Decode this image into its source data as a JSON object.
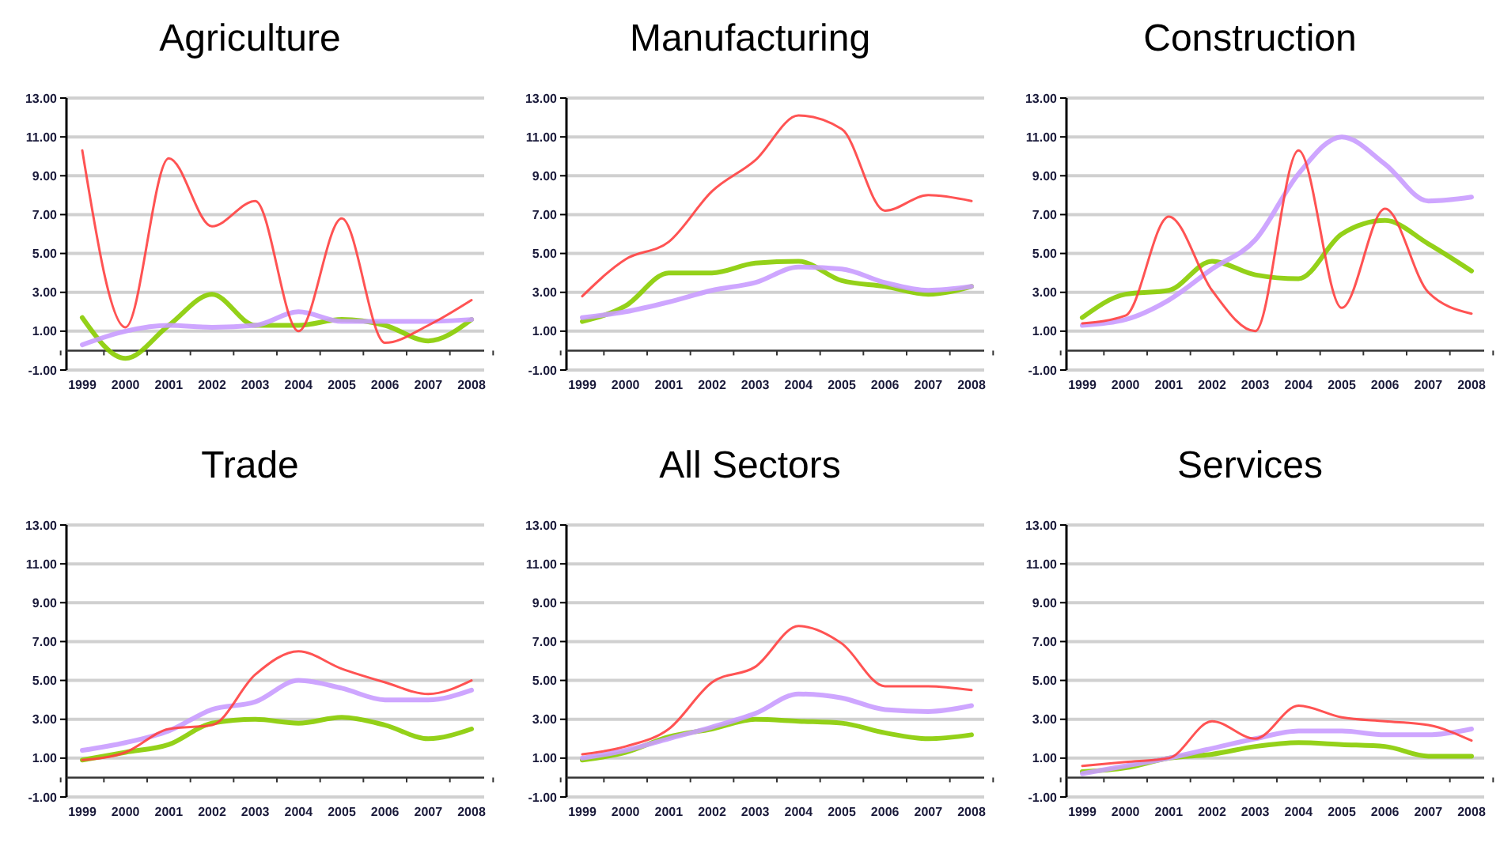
{
  "chart_data": [
    {
      "type": "line",
      "title": "Agriculture",
      "categories": [
        "1999",
        "2000",
        "2001",
        "2002",
        "2003",
        "2004",
        "2005",
        "2006",
        "2007",
        "2008"
      ],
      "ylim": [
        -1,
        13
      ],
      "yticks": [
        {
          "value": -1,
          "label": "-1.00"
        },
        {
          "value": 1,
          "label": "1.00"
        },
        {
          "value": 3,
          "label": "3.00"
        },
        {
          "value": 5,
          "label": "5.00"
        },
        {
          "value": 7,
          "label": "7.00"
        },
        {
          "value": 9,
          "label": "9.00"
        },
        {
          "value": 11,
          "label": "11.00"
        },
        {
          "value": 13,
          "label": "13.00"
        }
      ],
      "grid": "y",
      "series": [
        {
          "color": "#ff4040",
          "values": [
            10.3,
            1.2,
            9.9,
            6.4,
            7.7,
            1.0,
            6.8,
            0.4,
            1.3,
            2.6
          ]
        },
        {
          "color": "#c99cff",
          "values": [
            0.3,
            1.0,
            1.3,
            1.2,
            1.3,
            2.0,
            1.5,
            1.5,
            1.5,
            1.6
          ]
        },
        {
          "color": "#88cc00",
          "values": [
            1.7,
            -0.4,
            1.3,
            2.9,
            1.3,
            1.3,
            1.6,
            1.3,
            0.5,
            1.6
          ]
        }
      ]
    },
    {
      "type": "line",
      "title": "Manufacturing",
      "categories": [
        "1999",
        "2000",
        "2001",
        "2002",
        "2003",
        "2004",
        "2005",
        "2006",
        "2007",
        "2008"
      ],
      "ylim": [
        -1,
        13
      ],
      "yticks": [
        {
          "value": -1,
          "label": "-1.00"
        },
        {
          "value": 1,
          "label": "1.00"
        },
        {
          "value": 3,
          "label": "3.00"
        },
        {
          "value": 5,
          "label": "5.00"
        },
        {
          "value": 7,
          "label": "7.00"
        },
        {
          "value": 9,
          "label": "9.00"
        },
        {
          "value": 11,
          "label": "11.00"
        },
        {
          "value": 13,
          "label": "13.00"
        }
      ],
      "grid": "y",
      "series": [
        {
          "color": "#ff4040",
          "values": [
            2.8,
            4.7,
            5.6,
            8.2,
            9.8,
            12.1,
            11.4,
            7.2,
            8.0,
            7.7
          ]
        },
        {
          "color": "#c99cff",
          "values": [
            1.7,
            2.0,
            2.5,
            3.1,
            3.5,
            4.3,
            4.2,
            3.5,
            3.1,
            3.3
          ]
        },
        {
          "color": "#88cc00",
          "values": [
            1.5,
            2.3,
            4.0,
            4.0,
            4.5,
            4.6,
            3.6,
            3.3,
            2.9,
            3.3
          ]
        }
      ]
    },
    {
      "type": "line",
      "title": "Construction",
      "categories": [
        "1999",
        "2000",
        "2001",
        "2002",
        "2003",
        "2004",
        "2005",
        "2006",
        "2007",
        "2008"
      ],
      "ylim": [
        -1,
        13
      ],
      "yticks": [
        {
          "value": -1,
          "label": "-1.00"
        },
        {
          "value": 1,
          "label": "1.00"
        },
        {
          "value": 3,
          "label": "3.00"
        },
        {
          "value": 5,
          "label": "5.00"
        },
        {
          "value": 7,
          "label": "7.00"
        },
        {
          "value": 9,
          "label": "9.00"
        },
        {
          "value": 11,
          "label": "11.00"
        },
        {
          "value": 13,
          "label": "13.00"
        }
      ],
      "grid": "y",
      "series": [
        {
          "color": "#ff4040",
          "values": [
            1.4,
            1.8,
            6.9,
            3.1,
            1.0,
            10.3,
            2.2,
            7.3,
            3.0,
            1.9
          ]
        },
        {
          "color": "#c99cff",
          "values": [
            1.3,
            1.6,
            2.6,
            4.2,
            5.7,
            9.1,
            11.0,
            9.6,
            7.7,
            7.9
          ]
        },
        {
          "color": "#88cc00",
          "values": [
            1.7,
            2.9,
            3.1,
            4.6,
            3.9,
            3.7,
            6.0,
            6.7,
            5.5,
            4.1
          ]
        }
      ]
    },
    {
      "type": "line",
      "title": "Trade",
      "categories": [
        "1999",
        "2000",
        "2001",
        "2002",
        "2003",
        "2004",
        "2005",
        "2006",
        "2007",
        "2008"
      ],
      "ylim": [
        -1,
        13
      ],
      "yticks": [
        {
          "value": -1,
          "label": "-1.00"
        },
        {
          "value": 1,
          "label": "1.00"
        },
        {
          "value": 3,
          "label": "3.00"
        },
        {
          "value": 5,
          "label": "5.00"
        },
        {
          "value": 7,
          "label": "7.00"
        },
        {
          "value": 9,
          "label": "9.00"
        },
        {
          "value": 11,
          "label": "11.00"
        },
        {
          "value": 13,
          "label": "13.00"
        }
      ],
      "grid": "y",
      "series": [
        {
          "color": "#ff4040",
          "values": [
            0.9,
            1.3,
            2.5,
            2.7,
            5.3,
            6.5,
            5.6,
            4.9,
            4.3,
            5.0
          ]
        },
        {
          "color": "#c99cff",
          "values": [
            1.4,
            1.8,
            2.4,
            3.5,
            3.9,
            5.0,
            4.6,
            4.0,
            4.0,
            4.5
          ]
        },
        {
          "color": "#88cc00",
          "values": [
            0.9,
            1.3,
            1.7,
            2.8,
            3.0,
            2.8,
            3.1,
            2.7,
            2.0,
            2.5
          ]
        }
      ]
    },
    {
      "type": "line",
      "title": "All Sectors",
      "categories": [
        "1999",
        "2000",
        "2001",
        "2002",
        "2003",
        "2004",
        "2005",
        "2006",
        "2007",
        "2008"
      ],
      "ylim": [
        -1,
        13
      ],
      "yticks": [
        {
          "value": -1,
          "label": "-1.00"
        },
        {
          "value": 1,
          "label": "1.00"
        },
        {
          "value": 3,
          "label": "3.00"
        },
        {
          "value": 5,
          "label": "5.00"
        },
        {
          "value": 7,
          "label": "7.00"
        },
        {
          "value": 9,
          "label": "9.00"
        },
        {
          "value": 11,
          "label": "11.00"
        },
        {
          "value": 13,
          "label": "13.00"
        }
      ],
      "grid": "y",
      "series": [
        {
          "color": "#ff4040",
          "values": [
            1.2,
            1.6,
            2.5,
            4.9,
            5.7,
            7.8,
            6.9,
            4.7,
            4.7,
            4.5
          ]
        },
        {
          "color": "#c99cff",
          "values": [
            1.0,
            1.4,
            2.0,
            2.6,
            3.3,
            4.3,
            4.1,
            3.5,
            3.4,
            3.7
          ]
        },
        {
          "color": "#88cc00",
          "values": [
            0.9,
            1.3,
            2.1,
            2.5,
            3.0,
            2.9,
            2.8,
            2.3,
            2.0,
            2.2
          ]
        }
      ]
    },
    {
      "type": "line",
      "title": "Services",
      "categories": [
        "1999",
        "2000",
        "2001",
        "2002",
        "2003",
        "2004",
        "2005",
        "2006",
        "2007",
        "2008"
      ],
      "ylim": [
        -1,
        13
      ],
      "yticks": [
        {
          "value": -1,
          "label": "-1.00"
        },
        {
          "value": 1,
          "label": "1.00"
        },
        {
          "value": 3,
          "label": "3.00"
        },
        {
          "value": 5,
          "label": "5.00"
        },
        {
          "value": 7,
          "label": "7.00"
        },
        {
          "value": 9,
          "label": "9.00"
        },
        {
          "value": 11,
          "label": "11.00"
        },
        {
          "value": 13,
          "label": "13.00"
        }
      ],
      "grid": "y",
      "series": [
        {
          "color": "#ff4040",
          "values": [
            0.6,
            0.8,
            1.0,
            2.9,
            2.0,
            3.7,
            3.1,
            2.9,
            2.7,
            1.9
          ]
        },
        {
          "color": "#c99cff",
          "values": [
            0.2,
            0.6,
            1.0,
            1.5,
            2.0,
            2.4,
            2.4,
            2.2,
            2.2,
            2.5
          ]
        },
        {
          "color": "#88cc00",
          "values": [
            0.3,
            0.5,
            1.0,
            1.2,
            1.6,
            1.8,
            1.7,
            1.6,
            1.1,
            1.1
          ]
        }
      ]
    }
  ]
}
